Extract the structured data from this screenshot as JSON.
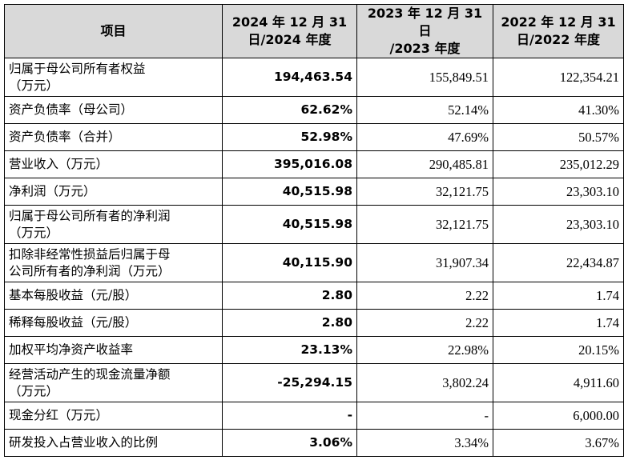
{
  "headers": [
    "项目",
    "2024 年 12 月 31\n日/2024 年度",
    "2023 年 12 月 31 日\n/2023 年度",
    "2022 年 12 月 31\n日/2022 年度"
  ],
  "rows": [
    {
      "label": "归属于母公司所有者权益\n（万元）",
      "v2024": "194,463.54",
      "v2023": "155,849.51",
      "v2022": "122,354.21",
      "tall": true
    },
    {
      "label": "资产负债率（母公司）",
      "v2024": "62.62%",
      "v2023": "52.14%",
      "v2022": "41.30%",
      "tall": false
    },
    {
      "label": "资产负债率（合并）",
      "v2024": "52.98%",
      "v2023": "47.69%",
      "v2022": "50.57%",
      "tall": false
    },
    {
      "label": "营业收入（万元）",
      "v2024": "395,016.08",
      "v2023": "290,485.81",
      "v2022": "235,012.29",
      "tall": false
    },
    {
      "label": "净利润（万元）",
      "v2024": "40,515.98",
      "v2023": "32,121.75",
      "v2022": "23,303.10",
      "tall": false
    },
    {
      "label": "归属于母公司所有者的净利润\n（万元）",
      "v2024": "40,515.98",
      "v2023": "32,121.75",
      "v2022": "23,303.10",
      "tall": true
    },
    {
      "label": "扣除非经常性损益后归属于母\n公司所有者的净利润（万元）",
      "v2024": "40,115.90",
      "v2023": "31,907.34",
      "v2022": "22,434.87",
      "tall": true
    },
    {
      "label": "基本每股收益（元/股）",
      "v2024": "2.80",
      "v2023": "2.22",
      "v2022": "1.74",
      "tall": false
    },
    {
      "label": "稀释每股收益（元/股）",
      "v2024": "2.80",
      "v2023": "2.22",
      "v2022": "1.74",
      "tall": false
    },
    {
      "label": "加权平均净资产收益率",
      "v2024": "23.13%",
      "v2023": "22.98%",
      "v2022": "20.15%",
      "tall": false
    },
    {
      "label": "经营活动产生的现金流量净额\n（万元）",
      "v2024": "-25,294.15",
      "v2023": "3,802.24",
      "v2022": "4,911.60",
      "tall": true
    },
    {
      "label": "现金分红（万元）",
      "v2024": "-",
      "v2023": "-",
      "v2022": "6,000.00",
      "tall": false
    },
    {
      "label": "研发投入占营业收入的比例",
      "v2024": "3.06%",
      "v2023": "3.34%",
      "v2022": "3.67%",
      "tall": false
    }
  ]
}
